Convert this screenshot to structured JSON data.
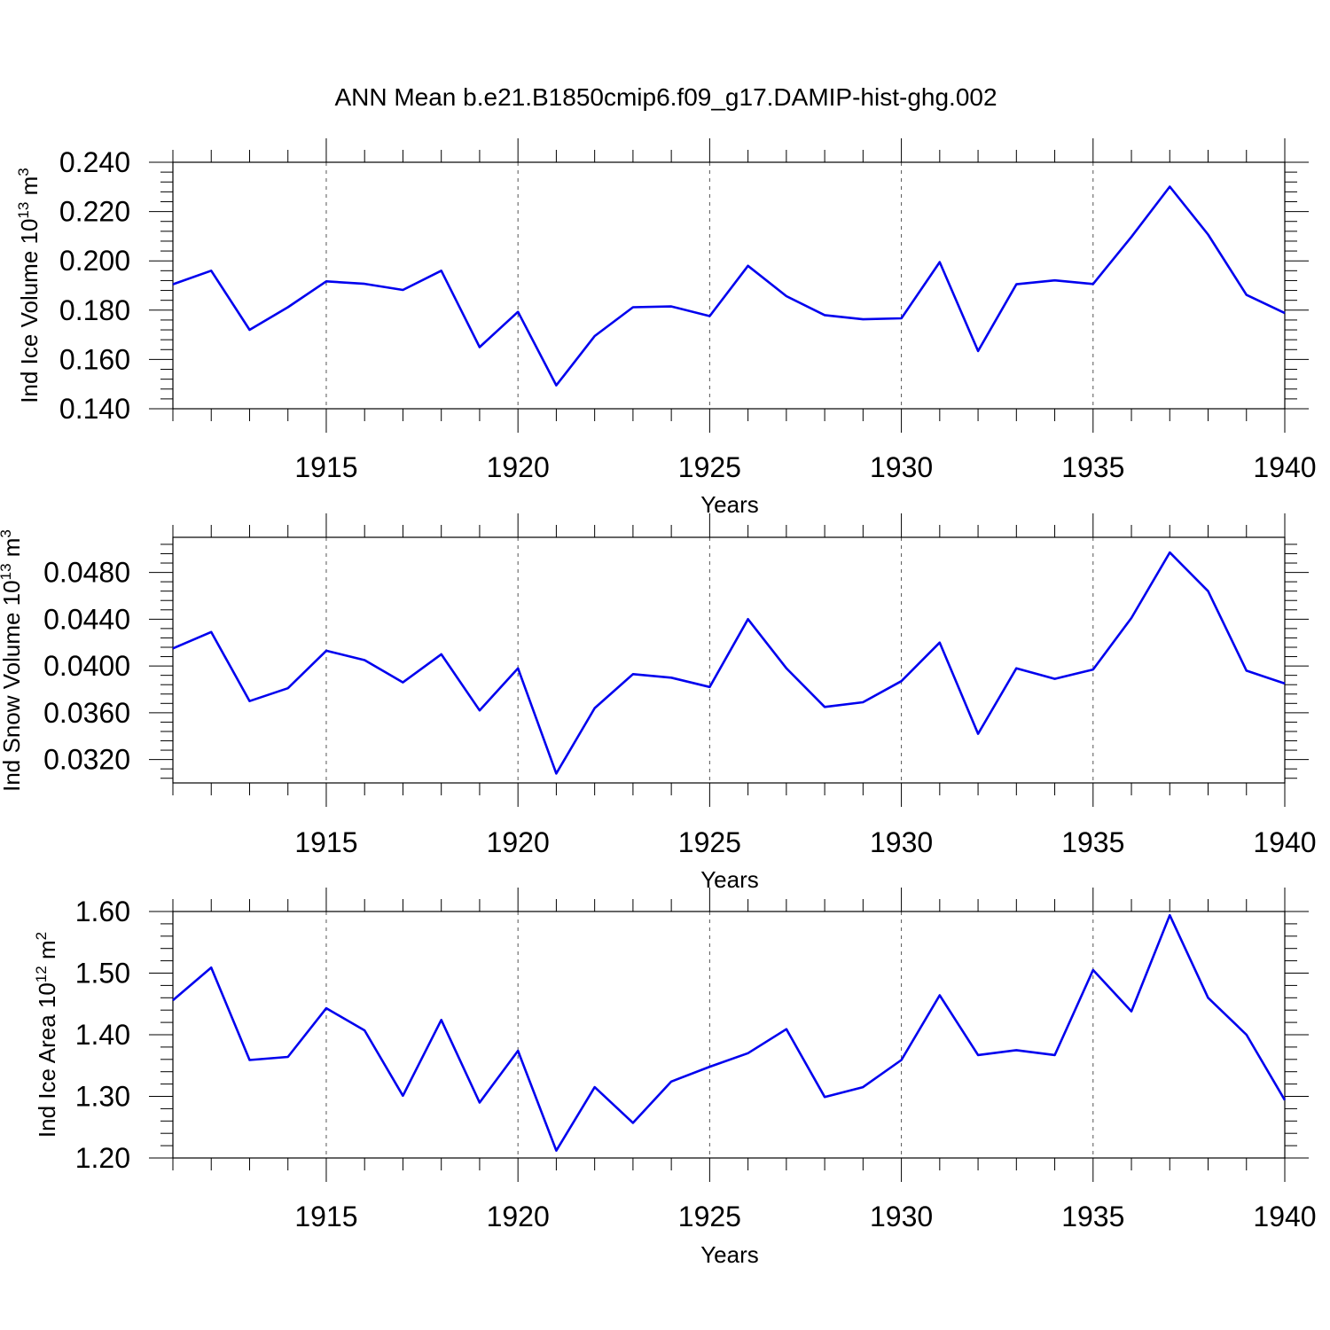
{
  "title": "ANN Mean b.e21.B1850cmip6.f09_g17.DAMIP-hist-ghg.002",
  "colors": {
    "line": "#0000ee",
    "axes": "#000000",
    "grid": "#555555",
    "background": "#ffffff"
  },
  "chart_data": [
    {
      "type": "line",
      "ylabel": "Ind Ice Volume 10",
      "ylabel_exp": "13",
      "ylabel_unit": " m",
      "ylabel_unit_exp": "3",
      "xlabel": "Years",
      "xlim": [
        1911,
        1940
      ],
      "ylim": [
        0.14,
        0.24
      ],
      "yticks": [
        0.14,
        0.16,
        0.18,
        0.2,
        0.22,
        0.24
      ],
      "ytick_labels": [
        "0.140",
        "0.160",
        "0.180",
        "0.200",
        "0.220",
        "0.240"
      ],
      "xticks": [
        1915,
        1920,
        1925,
        1930,
        1935,
        1940
      ],
      "xtick_labels": [
        "1915",
        "1920",
        "1925",
        "1930",
        "1935",
        "1940"
      ],
      "grid": "vertical dashed at major x ticks",
      "x": [
        1911,
        1912,
        1913,
        1914,
        1915,
        1916,
        1917,
        1918,
        1919,
        1920,
        1921,
        1922,
        1923,
        1924,
        1925,
        1926,
        1927,
        1928,
        1929,
        1930,
        1931,
        1932,
        1933,
        1934,
        1935,
        1936,
        1937,
        1938,
        1939,
        1940
      ],
      "series": [
        {
          "values": [
            0.1905,
            0.196,
            0.172,
            0.1812,
            0.1917,
            0.1907,
            0.1882,
            0.196,
            0.165,
            0.1793,
            0.1495,
            0.1695,
            0.1812,
            0.1815,
            0.1776,
            0.198,
            0.1857,
            0.178,
            0.1763,
            0.1767,
            0.1995,
            0.1634,
            0.1905,
            0.1921,
            0.1906,
            0.2097,
            0.2301,
            0.2107,
            0.1862,
            0.1788
          ]
        }
      ]
    },
    {
      "type": "line",
      "ylabel": "Ind Snow Volume 10",
      "ylabel_exp": "13",
      "ylabel_unit": " m",
      "ylabel_unit_exp": "3",
      "xlabel": "Years",
      "xlim": [
        1911,
        1940
      ],
      "ylim": [
        0.03,
        0.051
      ],
      "yticks": [
        0.032,
        0.036,
        0.04,
        0.044,
        0.048
      ],
      "ytick_labels": [
        "0.0320",
        "0.0360",
        "0.0400",
        "0.0440",
        "0.0480"
      ],
      "xticks": [
        1915,
        1920,
        1925,
        1930,
        1935,
        1940
      ],
      "xtick_labels": [
        "1915",
        "1920",
        "1925",
        "1930",
        "1935",
        "1940"
      ],
      "grid": "vertical dashed at major x ticks",
      "x": [
        1911,
        1912,
        1913,
        1914,
        1915,
        1916,
        1917,
        1918,
        1919,
        1920,
        1921,
        1922,
        1923,
        1924,
        1925,
        1926,
        1927,
        1928,
        1929,
        1930,
        1931,
        1932,
        1933,
        1934,
        1935,
        1936,
        1937,
        1938,
        1939,
        1940
      ],
      "series": [
        {
          "values": [
            0.0415,
            0.0429,
            0.037,
            0.0381,
            0.0413,
            0.0405,
            0.0386,
            0.041,
            0.0362,
            0.0398,
            0.0308,
            0.0364,
            0.0393,
            0.039,
            0.0382,
            0.044,
            0.0398,
            0.0365,
            0.0369,
            0.0387,
            0.042,
            0.0342,
            0.0398,
            0.0389,
            0.0397,
            0.0441,
            0.0497,
            0.0464,
            0.0396,
            0.0385
          ]
        }
      ]
    },
    {
      "type": "line",
      "ylabel": "Ind Ice Area 10",
      "ylabel_exp": "12",
      "ylabel_unit": " m",
      "ylabel_unit_exp": "2",
      "xlabel": "Years",
      "xlim": [
        1911,
        1940
      ],
      "ylim": [
        1.2,
        1.6
      ],
      "yticks": [
        1.2,
        1.3,
        1.4,
        1.5,
        1.6
      ],
      "ytick_labels": [
        "1.20",
        "1.30",
        "1.40",
        "1.50",
        "1.60"
      ],
      "xticks": [
        1915,
        1920,
        1925,
        1930,
        1935,
        1940
      ],
      "xtick_labels": [
        "1915",
        "1920",
        "1925",
        "1930",
        "1935",
        "1940"
      ],
      "grid": "vertical dashed at major x ticks",
      "x": [
        1911,
        1912,
        1913,
        1914,
        1915,
        1916,
        1917,
        1918,
        1919,
        1920,
        1921,
        1922,
        1923,
        1924,
        1925,
        1926,
        1927,
        1928,
        1929,
        1930,
        1931,
        1932,
        1933,
        1934,
        1935,
        1936,
        1937,
        1938,
        1939,
        1940
      ],
      "series": [
        {
          "values": [
            1.456,
            1.509,
            1.359,
            1.364,
            1.443,
            1.407,
            1.301,
            1.424,
            1.29,
            1.374,
            1.212,
            1.315,
            1.257,
            1.324,
            1.348,
            1.37,
            1.409,
            1.299,
            1.315,
            1.359,
            1.464,
            1.367,
            1.375,
            1.367,
            1.505,
            1.438,
            1.594,
            1.46,
            1.4,
            1.294
          ]
        }
      ]
    }
  ]
}
